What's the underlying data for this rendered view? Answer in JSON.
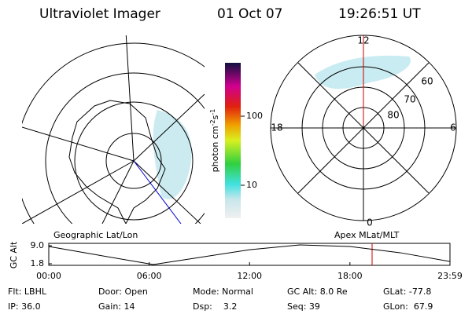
{
  "header": {
    "instrument": "Ultraviolet Imager",
    "date": "01 Oct 07",
    "time": "19:26:51 UT"
  },
  "colorbar": {
    "label_parts": [
      "photon cm",
      "-2",
      "s",
      "-1"
    ],
    "ticks": [
      {
        "value": 100,
        "label": "100"
      },
      {
        "value": 10,
        "label": "10"
      }
    ]
  },
  "dial": {
    "mlt_labels": [
      "12",
      "6",
      "0",
      "18"
    ],
    "lat_labels": [
      "60",
      "70",
      "80"
    ]
  },
  "altitude_plot": {
    "left_label": "Geographic Lat/Lon",
    "right_label": "Apex MLat/MLT",
    "ylabel": "GC Alt",
    "yticks": [
      {
        "value": 9.0,
        "label": "9.0"
      },
      {
        "value": 1.8,
        "label": "1.8"
      }
    ],
    "xticks": [
      {
        "value": 0,
        "label": "00:00"
      },
      {
        "value": 6,
        "label": "06:00"
      },
      {
        "value": 12,
        "label": "12:00"
      },
      {
        "value": 18,
        "label": "18:00"
      },
      {
        "value": 23.98,
        "label": "23:59"
      }
    ],
    "hours": [
      0,
      3,
      6.25,
      9,
      12,
      15,
      18,
      21,
      23.98
    ],
    "values": [
      8.7,
      5.2,
      1.5,
      4.3,
      7.4,
      9.3,
      8.7,
      6.2,
      2.7
    ]
  },
  "info": {
    "rows": [
      [
        "Flt: LBHL",
        "Door: Open",
        "Mode: Normal",
        "GC Alt: 8.0 Re",
        "GLat: -77.8"
      ],
      [
        "IP: 36.0",
        "Gain: 14",
        "Dsp:    3.2",
        "Seq: 39",
        "GLon:  67.9"
      ]
    ]
  }
}
